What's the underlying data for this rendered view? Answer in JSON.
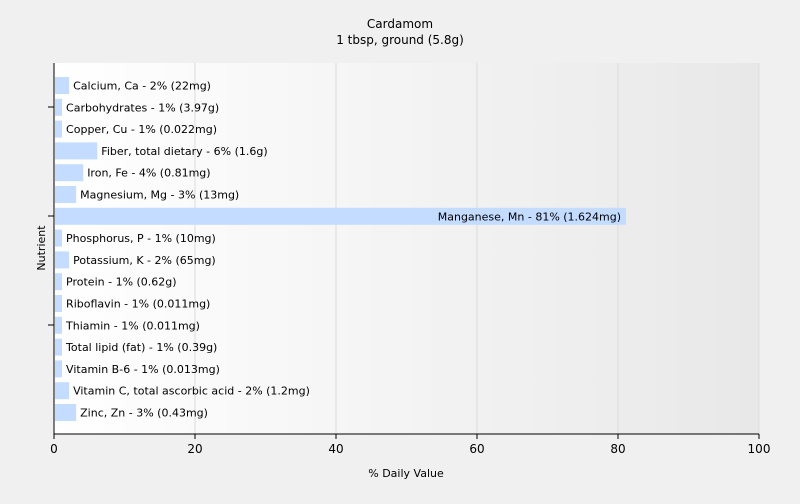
{
  "chart_data": {
    "type": "bar",
    "orientation": "horizontal",
    "title": "Cardamom",
    "subtitle": "1 tbsp, ground (5.8g)",
    "xlabel": "% Daily Value",
    "ylabel": "Nutrient",
    "xlim": [
      0,
      100
    ],
    "xticks": [
      0,
      20,
      40,
      60,
      80,
      100
    ],
    "grid": true,
    "bar_color": "#c4dcff",
    "categories": [
      "Calcium, Ca",
      "Carbohydrates",
      "Copper, Cu",
      "Fiber, total dietary",
      "Iron, Fe",
      "Magnesium, Mg",
      "Manganese, Mn",
      "Phosphorus, P",
      "Potassium, K",
      "Protein",
      "Riboflavin",
      "Thiamin",
      "Total lipid (fat)",
      "Vitamin B-6",
      "Vitamin C, total ascorbic acid",
      "Zinc, Zn"
    ],
    "values": [
      2,
      1,
      1,
      6,
      4,
      3,
      81,
      1,
      2,
      1,
      1,
      1,
      1,
      1,
      2,
      3
    ],
    "labels": [
      "Calcium, Ca - 2% (22mg)",
      "Carbohydrates - 1% (3.97g)",
      "Copper, Cu - 1% (0.022mg)",
      "Fiber, total dietary - 6% (1.6g)",
      "Iron, Fe - 4% (0.81mg)",
      "Magnesium, Mg - 3% (13mg)",
      "Manganese, Mn - 81% (1.624mg)",
      "Phosphorus, P - 1% (10mg)",
      "Potassium, K - 2% (65mg)",
      "Protein - 1% (0.62g)",
      "Riboflavin - 1% (0.011mg)",
      "Thiamin - 1% (0.011mg)",
      "Total lipid (fat) - 1% (0.39g)",
      "Vitamin B-6 - 1% (0.013mg)",
      "Vitamin C, total ascorbic acid - 2% (1.2mg)",
      "Zinc, Zn - 3% (0.43mg)"
    ]
  }
}
